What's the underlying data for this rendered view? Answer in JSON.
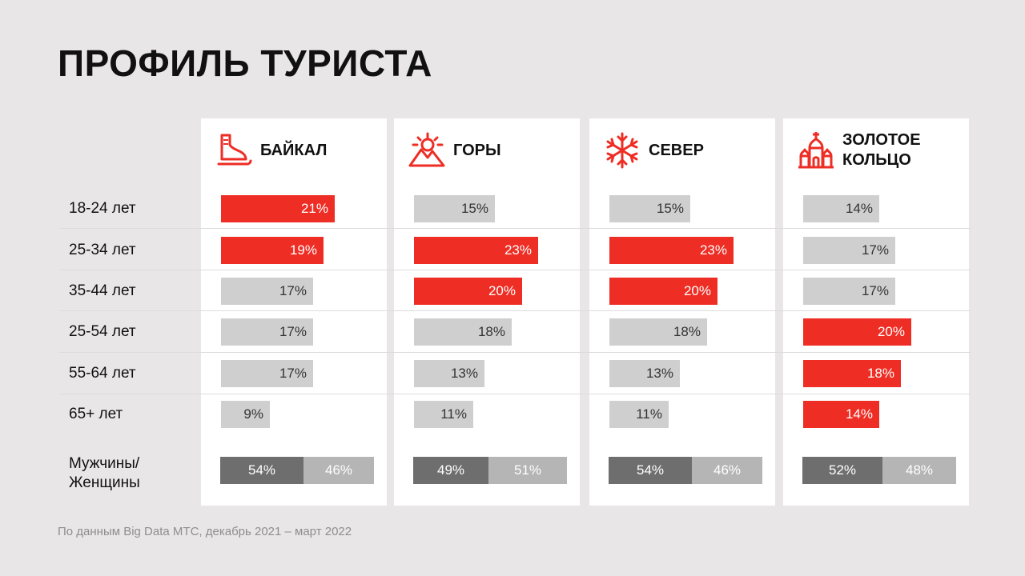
{
  "title": "ПРОФИЛЬ ТУРИСТА",
  "source": "По данным Big Data МТС, декабрь 2021 – март 2022",
  "colors": {
    "accent": "#ee2d24",
    "grey_bar": "#cfcfcf",
    "male": "#6e6e6e",
    "female": "#b5b5b5",
    "background": "#e8e6e7"
  },
  "chart_data": {
    "type": "bar",
    "title": "ПРОФИЛЬ ТУРИСТА",
    "categories": [
      "18-24 лет",
      "25-34 лет",
      "35-44 лет",
      "25-54 лет",
      "55-64 лет",
      "65+ лет"
    ],
    "series": [
      {
        "name": "БАЙКАЛ",
        "icon": "skate-icon",
        "values": [
          21,
          19,
          17,
          17,
          17,
          9
        ],
        "highlight": [
          true,
          true,
          false,
          false,
          false,
          false
        ],
        "gender": {
          "male": 54,
          "female": 46
        }
      },
      {
        "name": "ГОРЫ",
        "icon": "mountain-sun-icon",
        "values": [
          15,
          23,
          20,
          18,
          13,
          11
        ],
        "highlight": [
          false,
          true,
          true,
          false,
          false,
          false
        ],
        "gender": {
          "male": 49,
          "female": 51
        }
      },
      {
        "name": "СЕВЕР",
        "icon": "snowflake-icon",
        "values": [
          15,
          23,
          20,
          18,
          13,
          11
        ],
        "highlight": [
          false,
          true,
          true,
          false,
          false,
          false
        ],
        "gender": {
          "male": 54,
          "female": 46
        }
      },
      {
        "name": "ЗОЛОТОЕ\nКОЛЬЦО",
        "icon": "church-icon",
        "values": [
          14,
          17,
          17,
          20,
          18,
          14
        ],
        "highlight": [
          false,
          false,
          false,
          true,
          true,
          true
        ],
        "gender": {
          "male": 52,
          "female": 48
        }
      }
    ],
    "gender_label": "Мужчины/\nЖенщины",
    "unit": "%"
  }
}
